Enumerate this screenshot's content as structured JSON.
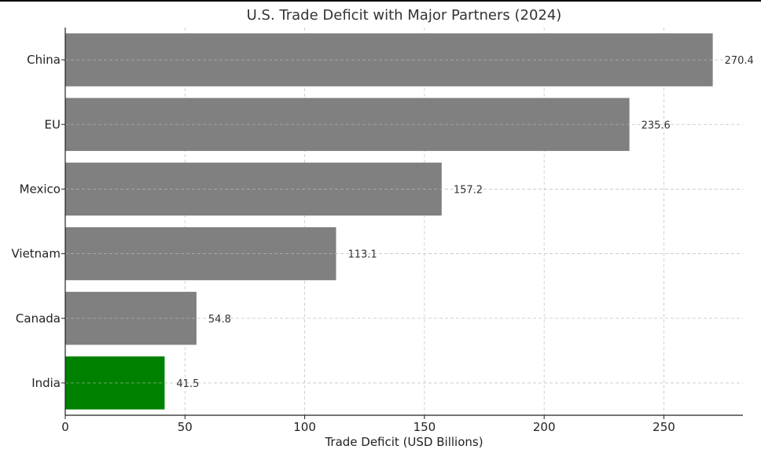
{
  "chart_data": {
    "type": "bar",
    "orientation": "horizontal",
    "title": "U.S. Trade Deficit with Major Partners (2024)",
    "xlabel": "Trade Deficit (USD Billions)",
    "ylabel": "",
    "categories": [
      "China",
      "EU",
      "Mexico",
      "Vietnam",
      "Canada",
      "India"
    ],
    "values": [
      270.4,
      235.6,
      157.2,
      113.1,
      54.8,
      41.5
    ],
    "value_labels": [
      "270.4",
      "235.6",
      "157.2",
      "113.1",
      "54.8",
      "41.5"
    ],
    "colors": [
      "#808080",
      "#808080",
      "#808080",
      "#808080",
      "#808080",
      "#008000"
    ],
    "xlim": [
      0,
      283
    ],
    "xticks": [
      0,
      50,
      100,
      150,
      200,
      250
    ],
    "grid": true,
    "legend": "none"
  }
}
